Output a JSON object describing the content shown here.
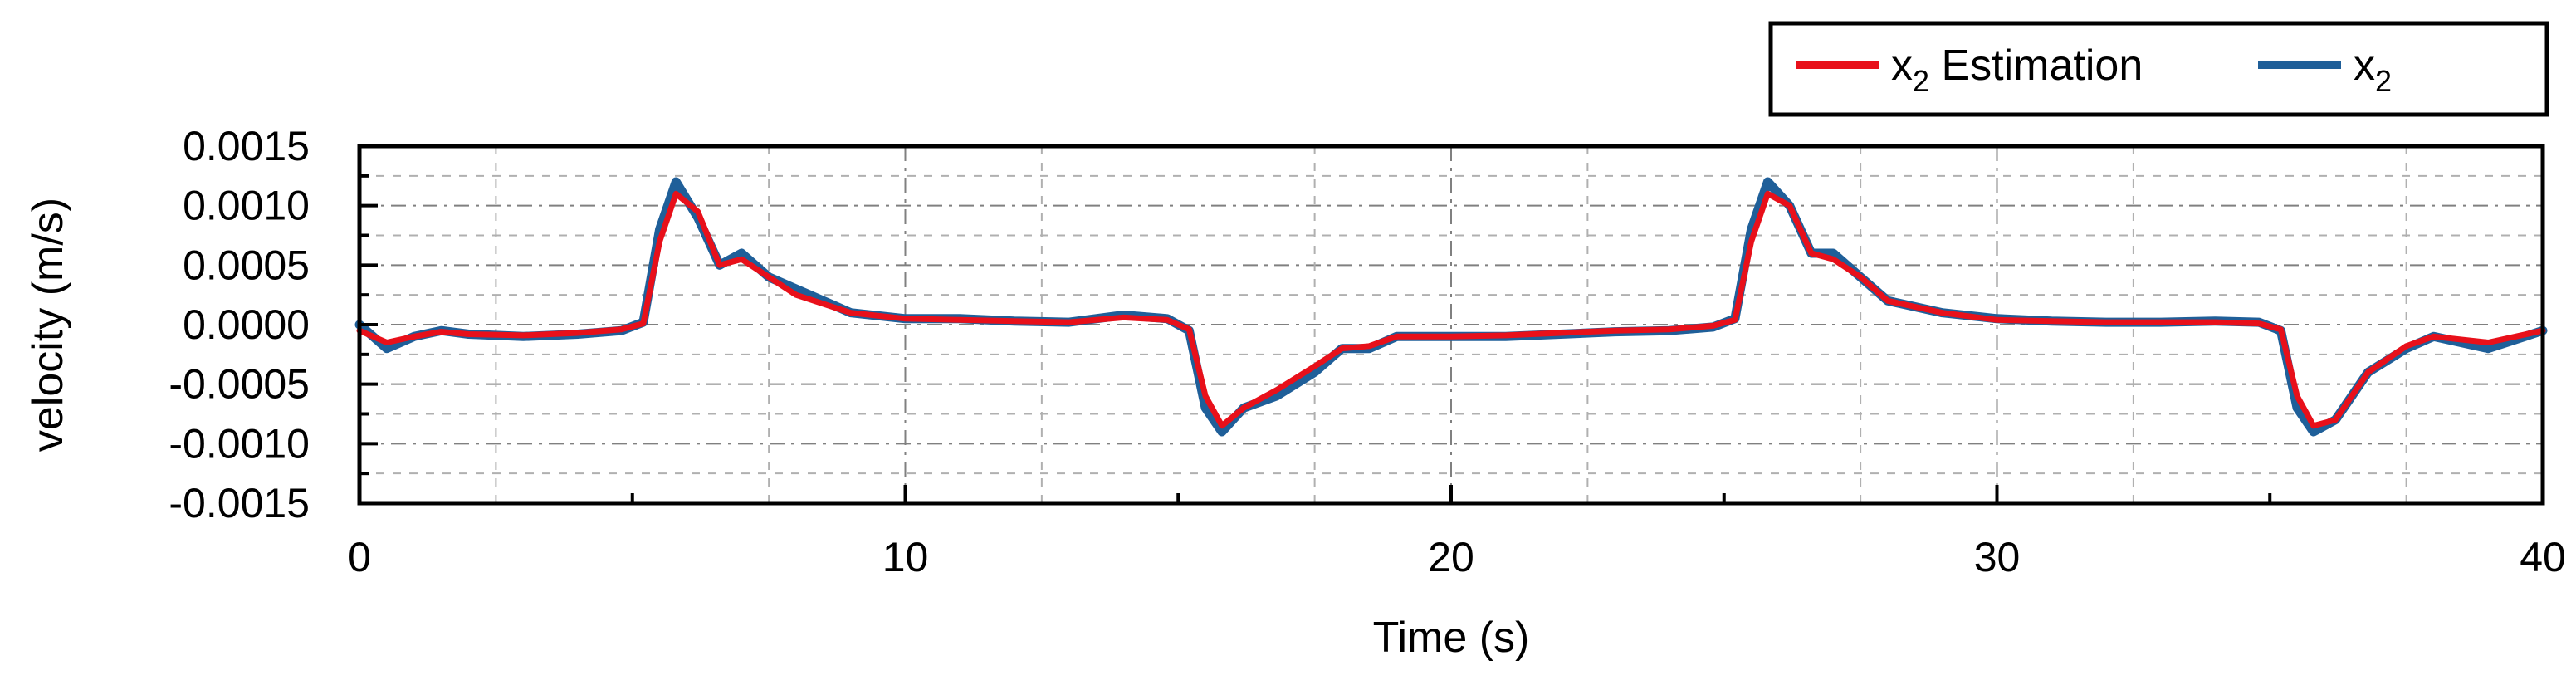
{
  "chart_data": {
    "type": "line",
    "xlabel": "Time (s)",
    "ylabel": "velocity (m/s)",
    "xlim": [
      0,
      40
    ],
    "ylim": [
      -0.0015,
      0.0015
    ],
    "x_ticks": [
      "0",
      "10",
      "20",
      "30",
      "40"
    ],
    "y_ticks": [
      "0.0015",
      "0.0010",
      "0.0005",
      "0.0000",
      "-0.0005",
      "-0.0010",
      "-0.0015"
    ],
    "grid": true,
    "legend_position": "top-right",
    "series": [
      {
        "name": "x",
        "name_subscript": "2",
        "color": "#1f5f99",
        "x": [
          0,
          0.5,
          1,
          1.5,
          2,
          3,
          4,
          4.8,
          5.2,
          5.5,
          5.8,
          6.2,
          6.6,
          7.0,
          7.5,
          8,
          9,
          10,
          11,
          12,
          13,
          14,
          14.8,
          15.2,
          15.5,
          15.8,
          16.2,
          16.8,
          17.5,
          18,
          18.5,
          19,
          20,
          21,
          22,
          23,
          24,
          24.8,
          25.2,
          25.5,
          25.8,
          26.2,
          26.6,
          27.0,
          27.5,
          28,
          29,
          30,
          31,
          32,
          33,
          34,
          34.8,
          35.2,
          35.5,
          35.8,
          36.2,
          36.8,
          37.5,
          38,
          39,
          40
        ],
        "y": [
          0.0,
          -0.0002,
          -0.0001,
          -5e-05,
          -8e-05,
          -0.0001,
          -8e-05,
          -5e-05,
          2e-05,
          0.0008,
          0.0012,
          0.0009,
          0.0005,
          0.0006,
          0.0004,
          0.0003,
          0.0001,
          5e-05,
          5e-05,
          3e-05,
          2e-05,
          8e-05,
          5e-05,
          -5e-05,
          -0.0007,
          -0.0009,
          -0.0007,
          -0.0006,
          -0.0004,
          -0.0002,
          -0.0002,
          -0.0001,
          -0.0001,
          -0.0001,
          -8e-05,
          -6e-05,
          -5e-05,
          -2e-05,
          5e-05,
          0.0008,
          0.0012,
          0.001,
          0.0006,
          0.0006,
          0.0004,
          0.0002,
          0.0001,
          5e-05,
          3e-05,
          2e-05,
          2e-05,
          3e-05,
          2e-05,
          -5e-05,
          -0.0007,
          -0.0009,
          -0.0008,
          -0.0004,
          -0.0002,
          -0.0001,
          -0.0002,
          -5e-05
        ]
      },
      {
        "name": "x",
        "name_suffix": " Estimation",
        "name_subscript": "2",
        "color": "#e8101a",
        "x": [
          0,
          0.5,
          1,
          1.5,
          2,
          3,
          4,
          4.8,
          5.2,
          5.5,
          5.8,
          6.2,
          6.6,
          7.0,
          7.5,
          8,
          9,
          10,
          11,
          12,
          13,
          14,
          14.8,
          15.2,
          15.5,
          15.8,
          16.2,
          16.8,
          17.5,
          18,
          18.5,
          19,
          20,
          21,
          22,
          23,
          24,
          24.8,
          25.2,
          25.5,
          25.8,
          26.2,
          26.6,
          27.0,
          27.5,
          28,
          29,
          30,
          31,
          32,
          33,
          34,
          34.8,
          35.2,
          35.5,
          35.8,
          36.2,
          36.8,
          37.5,
          38,
          39,
          40
        ],
        "y": [
          -5e-05,
          -0.00015,
          -0.0001,
          -6e-05,
          -8e-05,
          -9e-05,
          -7e-05,
          -4e-05,
          1e-05,
          0.0007,
          0.0011,
          0.00095,
          0.0005,
          0.00055,
          0.0004,
          0.00025,
          0.0001,
          5e-05,
          4e-05,
          3e-05,
          2e-05,
          6e-05,
          4e-05,
          -4e-05,
          -0.0006,
          -0.00085,
          -0.0007,
          -0.00055,
          -0.00035,
          -0.0002,
          -0.00018,
          -0.0001,
          -0.0001,
          -9e-05,
          -7e-05,
          -5e-05,
          -4e-05,
          -1e-05,
          4e-05,
          0.0007,
          0.0011,
          0.001,
          0.0006,
          0.00055,
          0.0004,
          0.0002,
          0.0001,
          4e-05,
          3e-05,
          2e-05,
          2e-05,
          2e-05,
          1e-05,
          -4e-05,
          -0.0006,
          -0.00085,
          -0.0008,
          -0.0004,
          -0.00018,
          -0.0001,
          -0.00015,
          -5e-05
        ]
      }
    ]
  }
}
